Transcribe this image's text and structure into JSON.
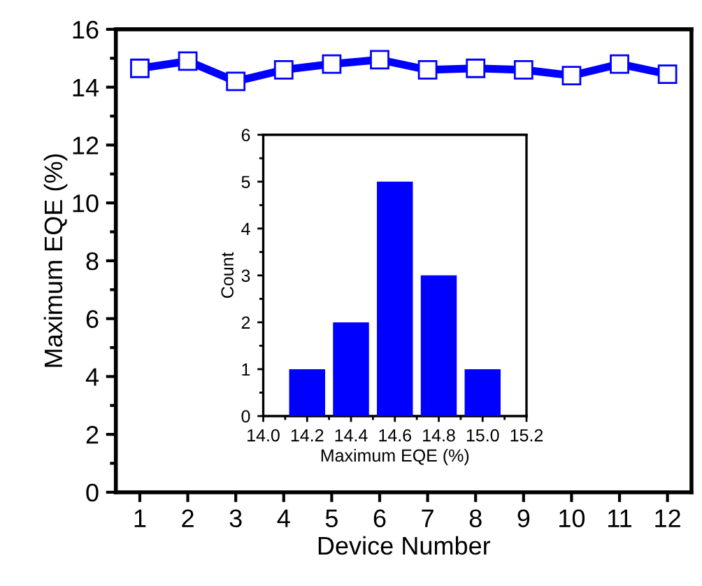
{
  "chart_data": [
    {
      "type": "line",
      "xlabel": "Device Number",
      "ylabel": "Maximum EQE (%)",
      "x": [
        1,
        2,
        3,
        4,
        5,
        6,
        7,
        8,
        9,
        10,
        11,
        12
      ],
      "series": [
        {
          "color": "#0000ff",
          "values": [
            14.65,
            14.9,
            14.2,
            14.6,
            14.8,
            14.95,
            14.6,
            14.65,
            14.6,
            14.4,
            14.8,
            14.45
          ]
        }
      ],
      "xlim": [
        0.5,
        12.5
      ],
      "xticks": [
        1,
        2,
        3,
        4,
        5,
        6,
        7,
        8,
        9,
        10,
        11,
        12
      ],
      "ylim": [
        0,
        16
      ],
      "yticks": [
        0,
        2,
        4,
        6,
        8,
        10,
        12,
        14,
        16
      ],
      "marker": "square",
      "line_style": "solid",
      "grid": false,
      "legend": false
    },
    {
      "type": "histogram",
      "xlabel": "Maximum EQE (%)",
      "ylabel": "Count",
      "bins": [
        14.1,
        14.3,
        14.5,
        14.7,
        14.9,
        15.1
      ],
      "values": [
        1,
        2,
        5,
        3,
        1
      ],
      "color": "#0000ff",
      "xlim": [
        14.0,
        15.2
      ],
      "xticks": [
        {
          "value": 14.0,
          "label": "14.0"
        },
        {
          "value": 14.2,
          "label": "14.2"
        },
        {
          "value": 14.4,
          "label": "14.4"
        },
        {
          "value": 14.6,
          "label": "14.6"
        },
        {
          "value": 14.8,
          "label": "14.8"
        },
        {
          "value": 15.0,
          "label": "15.0"
        },
        {
          "value": 15.2,
          "label": "15.2"
        }
      ],
      "ylim": [
        0,
        6
      ],
      "yticks": [
        0,
        1,
        2,
        3,
        4,
        5,
        6
      ],
      "grid": false
    }
  ]
}
